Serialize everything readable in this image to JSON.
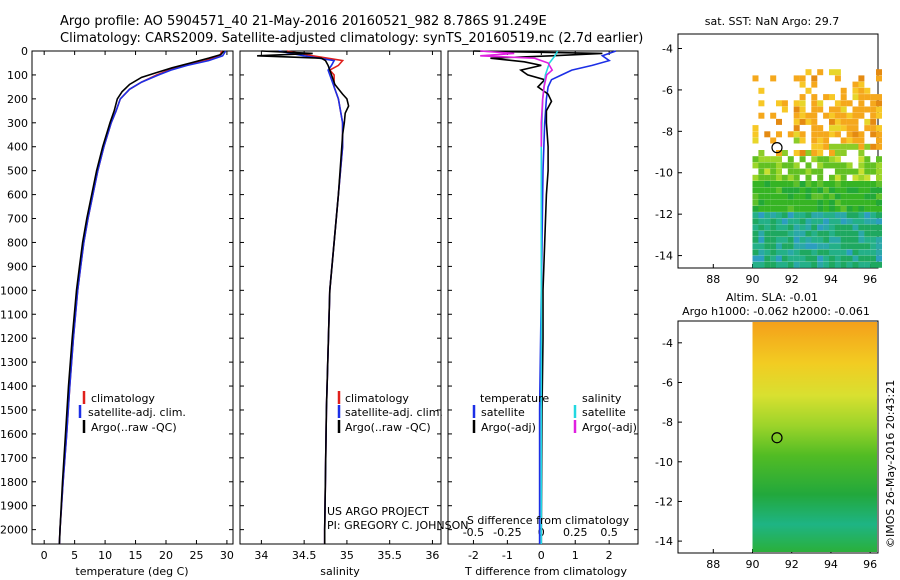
{
  "header": {
    "line1": "Argo profile: AO 5904571_40 21-May-2016 20160521_982 8.786S 91.249E",
    "line2": "Climatology: CARS2009. Satellite-adjusted climatology: synTS_20160519.nc (2.7d earlier)"
  },
  "colors": {
    "clim": "#e0201c",
    "sat": "#1c2fe6",
    "argo": "#000000",
    "sal_sat": "#22d8e0",
    "sal_argo": "#e020e0"
  },
  "chart_data": [
    {
      "type": "line",
      "id": "temperature",
      "xlabel": "temperature (deg C)",
      "ylabel": "",
      "xlim": [
        -2,
        31
      ],
      "ylim": [
        2060,
        0
      ],
      "xticks": [
        0,
        5,
        10,
        15,
        20,
        25,
        30
      ],
      "xtick_labels": [
        "0",
        "5",
        "10",
        "15",
        "20",
        "25",
        "30"
      ],
      "yticks": [
        0,
        100,
        200,
        300,
        400,
        500,
        600,
        700,
        800,
        900,
        1000,
        1100,
        1200,
        1300,
        1400,
        1500,
        1600,
        1700,
        1800,
        1900,
        2000
      ],
      "ytick_labels": [
        "0",
        "100",
        "200",
        "300",
        "400",
        "500",
        "600",
        "700",
        "800",
        "900",
        "1000",
        "1100",
        "1200",
        "1300",
        "1400",
        "1500",
        "1600",
        "1700",
        "1800",
        "1900",
        "2000"
      ],
      "series": [
        {
          "name": "climatology",
          "color": "#e0201c",
          "depth": [
            0,
            20,
            40,
            60,
            80,
            100,
            130,
            160,
            200,
            250,
            300,
            400,
            500,
            600,
            700,
            800,
            900,
            1000,
            1200,
            1400,
            1600,
            1800,
            2000,
            2060
          ],
          "values": [
            29.2,
            28.8,
            26.5,
            23.0,
            20.5,
            18.5,
            16.0,
            14.0,
            12.5,
            11.8,
            11.0,
            9.8,
            8.8,
            8.0,
            7.2,
            6.5,
            6.0,
            5.5,
            4.8,
            4.2,
            3.7,
            3.1,
            2.6,
            2.5
          ]
        },
        {
          "name": "satellite-adj. clim.",
          "color": "#1c2fe6",
          "depth": [
            0,
            20,
            40,
            60,
            80,
            100,
            130,
            160,
            200,
            250,
            300,
            400,
            500,
            600,
            700,
            800,
            900,
            1000,
            1200,
            1400,
            1600,
            1800,
            2000,
            2060
          ],
          "values": [
            29.8,
            29.3,
            27.0,
            23.5,
            20.8,
            18.8,
            16.0,
            14.0,
            12.5,
            11.8,
            11.0,
            9.8,
            8.8,
            8.0,
            7.2,
            6.5,
            6.0,
            5.5,
            4.8,
            4.2,
            3.7,
            3.1,
            2.6,
            2.5
          ]
        },
        {
          "name": "Argo(..raw -QC)",
          "color": "#000000",
          "depth": [
            0,
            15,
            30,
            50,
            70,
            90,
            110,
            140,
            170,
            200,
            250,
            300,
            400,
            500,
            600,
            700,
            800,
            900,
            1000,
            1200,
            1400,
            1600,
            1800,
            2000,
            2060
          ],
          "values": [
            29.5,
            29.0,
            27.0,
            24.0,
            21.0,
            18.5,
            16.0,
            14.0,
            12.8,
            12.0,
            11.5,
            10.8,
            9.6,
            8.6,
            7.8,
            7.0,
            6.3,
            5.8,
            5.3,
            4.6,
            4.0,
            3.5,
            3.0,
            2.6,
            2.5
          ]
        }
      ],
      "legend": [
        "climatology",
        "satellite-adj. clim.",
        "Argo(..raw -QC)"
      ]
    },
    {
      "type": "line",
      "id": "salinity",
      "xlabel": "salinity",
      "xlim": [
        33.75,
        36.1
      ],
      "ylim": [
        2060,
        0
      ],
      "xticks": [
        34,
        34.5,
        35,
        35.5,
        36
      ],
      "xtick_labels": [
        "34",
        "34.5",
        "35",
        "35.5",
        "36"
      ],
      "series": [
        {
          "name": "climatology",
          "color": "#e0201c",
          "depth": [
            0,
            20,
            40,
            60,
            80,
            100,
            150,
            200,
            300,
            400,
            600,
            800,
            1000,
            1500,
            2000,
            2060
          ],
          "values": [
            34.3,
            34.6,
            34.95,
            34.9,
            34.8,
            34.85,
            34.85,
            34.9,
            34.95,
            34.95,
            34.9,
            34.85,
            34.8,
            34.76,
            34.74,
            34.74
          ]
        },
        {
          "name": "satellite-adj. clim.",
          "color": "#1c2fe6",
          "depth": [
            0,
            20,
            40,
            60,
            80,
            100,
            150,
            200,
            300,
            400,
            600,
            800,
            1000,
            1500,
            2000,
            2060
          ],
          "values": [
            34.2,
            34.5,
            34.85,
            34.82,
            34.78,
            34.8,
            34.85,
            34.9,
            34.95,
            34.95,
            34.9,
            34.85,
            34.8,
            34.76,
            34.74,
            34.74
          ]
        },
        {
          "name": "Argo(..raw -QC)",
          "color": "#000000",
          "depth": [
            0,
            10,
            20,
            30,
            40,
            60,
            80,
            100,
            140,
            180,
            200,
            230,
            260,
            300,
            350,
            400,
            600,
            800,
            1000,
            1500,
            2000,
            2060
          ],
          "values": [
            34.0,
            34.6,
            33.95,
            34.7,
            34.75,
            34.78,
            34.8,
            34.82,
            34.86,
            34.95,
            35.0,
            35.02,
            34.98,
            34.97,
            34.95,
            34.94,
            34.9,
            34.85,
            34.8,
            34.76,
            34.74,
            34.74
          ]
        }
      ],
      "legend": [
        "climatology",
        "satellite-adj. clim.",
        "Argo(..raw -QC)"
      ],
      "annotation": [
        "US ARGO PROJECT",
        "PI: GREGORY C. JOHNSON"
      ]
    },
    {
      "type": "line",
      "id": "difference",
      "xlabel": "T difference from climatology",
      "x2label": "S difference from climatology",
      "xlim": [
        -2.75,
        2.85
      ],
      "ylim": [
        2060,
        0
      ],
      "xticks": [
        -2,
        -1,
        0,
        1,
        2
      ],
      "xtick_labels": [
        "-2",
        "-1",
        "0",
        "1",
        "2"
      ],
      "x2ticks": [
        -0.5,
        -0.25,
        0,
        0.25,
        0.5
      ],
      "x2tick_labels": [
        "-0.5",
        "-0.25",
        "0",
        "0.25",
        "0.5"
      ],
      "series": [
        {
          "name": "temperature satellite",
          "color": "#1c2fe6",
          "depth": [
            0,
            10,
            20,
            40,
            60,
            80,
            100,
            120,
            150,
            200,
            300,
            500,
            800,
            1000,
            1500,
            2000,
            2060
          ],
          "values": [
            2.2,
            2.0,
            1.8,
            2.0,
            1.5,
            0.9,
            0.6,
            0.3,
            0.2,
            0.15,
            0.1,
            0.05,
            0.02,
            0.0,
            -0.05,
            -0.05,
            -0.05
          ]
        },
        {
          "name": "temperature Argo(-adj)",
          "color": "#000000",
          "depth": [
            0,
            10,
            20,
            30,
            45,
            60,
            80,
            100,
            120,
            150,
            180,
            210,
            250,
            300,
            400,
            500,
            600,
            800,
            1000,
            1200,
            1500,
            2000,
            2060
          ],
          "values": [
            -2.0,
            1.8,
            0.3,
            -1.5,
            -0.5,
            0.0,
            -0.6,
            -0.4,
            0.1,
            -0.1,
            0.2,
            0.3,
            0.15,
            0.15,
            0.2,
            0.2,
            0.15,
            0.1,
            0.05,
            0.05,
            0.02,
            0.0,
            0.0
          ]
        },
        {
          "name": "salinity satellite",
          "color": "#22d8e0",
          "depth": [
            0,
            20,
            50,
            100,
            200,
            400,
            800,
            1200,
            2000,
            2060
          ],
          "values": [
            0.12,
            0.1,
            0.06,
            0.03,
            0.01,
            0.0,
            0.0,
            0.0,
            0.0,
            0.0
          ]
        },
        {
          "name": "salinity Argo(-adj)",
          "color": "#e020e0",
          "depth": [
            0,
            10,
            20,
            30,
            50,
            80,
            100,
            150,
            200,
            300,
            400
          ],
          "values": [
            -0.45,
            -0.2,
            -0.45,
            -0.05,
            0.05,
            0.08,
            0.04,
            0.02,
            0.01,
            0.0,
            0.0
          ]
        }
      ],
      "legend": {
        "temperature_title": "temperature",
        "salinity_title": "salinity",
        "t_sat": "satellite",
        "t_argo": "Argo(-adj)",
        "s_sat": "satellite",
        "s_argo": "Argo(-adj)"
      }
    },
    {
      "type": "heatmap",
      "id": "sst_map",
      "title": "sat. SST: NaN Argo: 29.7",
      "xlim": [
        86.2,
        96.4
      ],
      "ylim": [
        -14.6,
        -3.3
      ],
      "xticks": [
        88,
        90,
        92,
        94,
        96
      ],
      "xtick_labels": [
        "88",
        "90",
        "92",
        "94",
        "96"
      ],
      "yticks": [
        -4,
        -6,
        -8,
        -10,
        -12,
        -14
      ],
      "ytick_labels": [
        "-4",
        "-6",
        "-8",
        "-10",
        "-12",
        "-14"
      ],
      "argo_position": {
        "lon": 91.249,
        "lat": -8.786
      }
    },
    {
      "type": "heatmap",
      "id": "sla_map",
      "title1": "Altim. SLA: -0.01",
      "title2": "Argo h1000: -0.062 h2000: -0.061",
      "xlim": [
        86.2,
        96.4
      ],
      "ylim": [
        -14.6,
        -2.9
      ],
      "xticks": [
        88,
        90,
        92,
        94,
        96
      ],
      "xtick_labels": [
        "88",
        "90",
        "92",
        "94",
        "96"
      ],
      "yticks": [
        -4,
        -6,
        -8,
        -10,
        -12,
        -14
      ],
      "ytick_labels": [
        "-4",
        "-6",
        "-8",
        "-10",
        "-12",
        "-14"
      ],
      "argo_position": {
        "lon": 91.249,
        "lat": -8.786
      }
    }
  ],
  "stamp": "©IMOS 26-May-2016 20:43:21"
}
